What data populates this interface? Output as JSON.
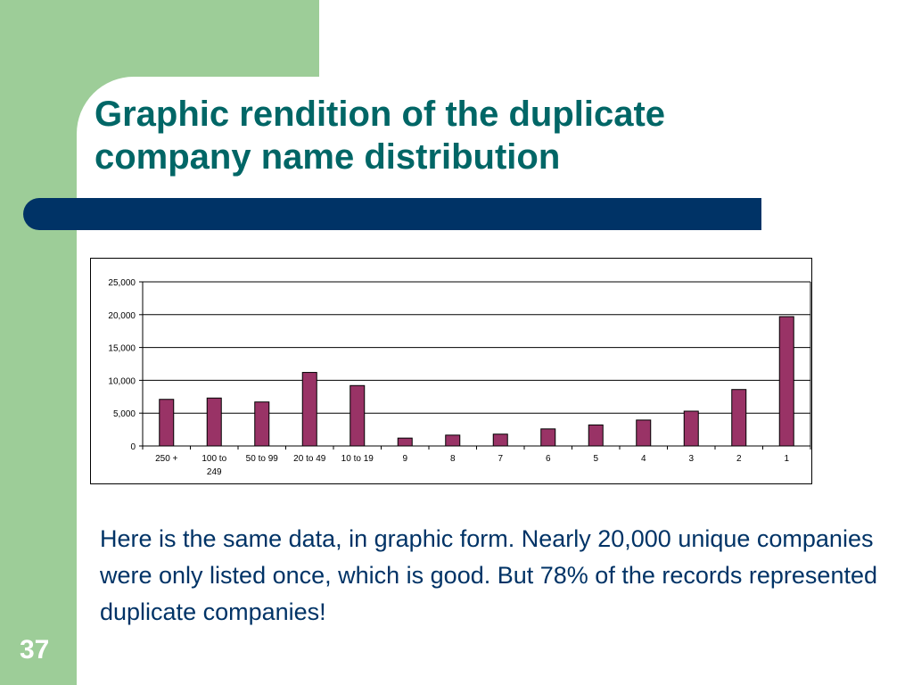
{
  "slide": {
    "title_lines": [
      "Graphic rendition of the duplicate",
      "company name distribution"
    ],
    "body_text": "Here is the same data, in graphic form. Nearly 20,000 unique companies were only listed once, which is good. But 78% of the records represented duplicate companies!",
    "slide_number": "37"
  },
  "colors": {
    "green": "#9dcd98",
    "title": "#006666",
    "bar_blue": "#003366",
    "bar_fill": "#993366"
  },
  "chart_data": {
    "type": "bar",
    "title": "",
    "xlabel": "",
    "ylabel": "",
    "categories": [
      "250 +",
      "100 to 249",
      "50 to 99",
      "20 to 49",
      "10 to 19",
      "9",
      "8",
      "7",
      "6",
      "5",
      "4",
      "3",
      "2",
      "1"
    ],
    "values": [
      7100,
      7300,
      6700,
      11200,
      9200,
      1200,
      1650,
      1800,
      2600,
      3200,
      3950,
      5300,
      8600,
      19700
    ],
    "ylim": [
      0,
      25000
    ],
    "y_ticks": [
      0,
      5000,
      10000,
      15000,
      20000,
      25000
    ],
    "y_tick_labels": [
      "0",
      "5,000",
      "10,000",
      "15,000",
      "20,000",
      "25,000"
    ],
    "grid": true,
    "legend": "none"
  }
}
